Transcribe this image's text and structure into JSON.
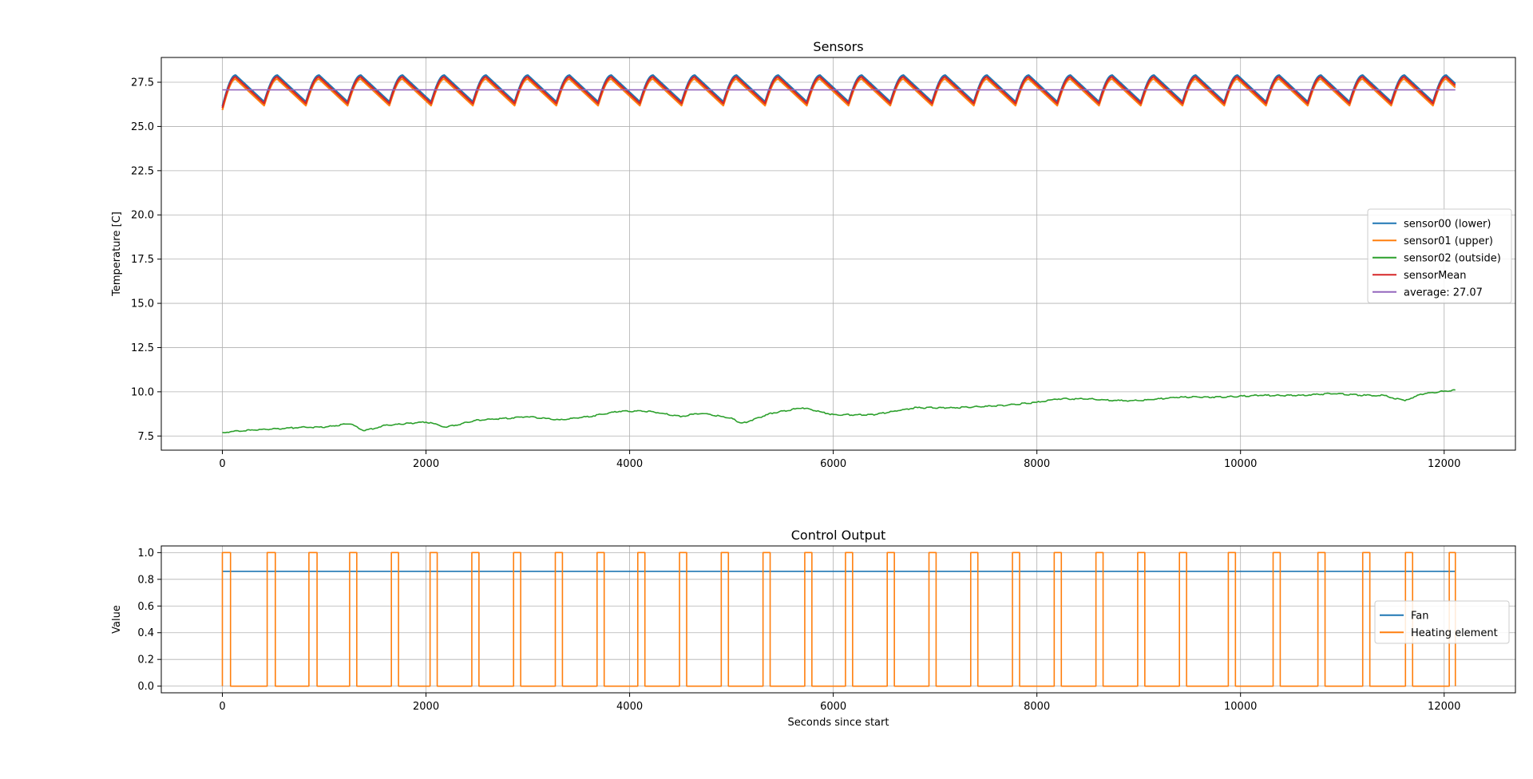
{
  "chart_data": [
    {
      "type": "line",
      "title": "Sensors",
      "xlabel": "",
      "ylabel": "Temperature [C]",
      "xlim": [
        -600,
        12700
      ],
      "ylim": [
        6.7,
        28.9
      ],
      "xticks": [
        0,
        2000,
        4000,
        6000,
        8000,
        10000,
        12000
      ],
      "xtick_labels": [
        "0",
        "2000",
        "4000",
        "6000",
        "8000",
        "10000",
        "12000"
      ],
      "yticks": [
        7.5,
        10.0,
        12.5,
        15.0,
        17.5,
        20.0,
        22.5,
        25.0,
        27.5
      ],
      "ytick_labels": [
        "7.5",
        "10.0",
        "12.5",
        "15.0",
        "17.5",
        "20.0",
        "22.5",
        "25.0",
        "27.5"
      ],
      "grid": true,
      "legend_position": "center-right",
      "cycle": {
        "start": 0,
        "period_seconds": 410,
        "end": 12110,
        "rise_seconds": 130,
        "low": 26.3,
        "high": 27.8,
        "initial_value": 26.05
      },
      "series": [
        {
          "name": "sensor00 (lower)",
          "color": "#1f77b4",
          "kind": "cycle",
          "offset": 0.1
        },
        {
          "name": "sensor01 (upper)",
          "color": "#ff7f0e",
          "kind": "cycle",
          "offset": -0.12
        },
        {
          "name": "sensor02 (outside)",
          "color": "#2ca02c",
          "kind": "points",
          "x": [
            0,
            200,
            500,
            800,
            1000,
            1250,
            1400,
            1600,
            2000,
            2200,
            2500,
            2800,
            3000,
            3300,
            3600,
            3900,
            4200,
            4500,
            4700,
            5000,
            5100,
            5400,
            5700,
            6000,
            6400,
            6800,
            7200,
            7600,
            8000,
            8200,
            8500,
            8800,
            9000,
            9400,
            9800,
            10200,
            10600,
            10900,
            11200,
            11400,
            11600,
            11800,
            12110
          ],
          "y": [
            7.7,
            7.8,
            7.9,
            8.0,
            8.0,
            8.2,
            7.8,
            8.1,
            8.3,
            8.0,
            8.4,
            8.5,
            8.6,
            8.4,
            8.6,
            8.9,
            8.9,
            8.6,
            8.8,
            8.5,
            8.2,
            8.8,
            9.1,
            8.7,
            8.7,
            9.1,
            9.1,
            9.2,
            9.4,
            9.6,
            9.6,
            9.5,
            9.5,
            9.7,
            9.7,
            9.8,
            9.8,
            9.9,
            9.8,
            9.8,
            9.5,
            9.9,
            10.1
          ]
        },
        {
          "name": "sensorMean",
          "color": "#d62728",
          "kind": "cycle",
          "offset": 0.0
        },
        {
          "name": "average: 27.07",
          "color": "#9467bd",
          "kind": "constant",
          "value": 27.07,
          "x_range": [
            0,
            12110
          ]
        }
      ]
    },
    {
      "type": "line",
      "title": "Control Output",
      "xlabel": "Seconds since start",
      "ylabel": "Value",
      "xlim": [
        -600,
        12700
      ],
      "ylim": [
        -0.05,
        1.05
      ],
      "xticks": [
        0,
        2000,
        4000,
        6000,
        8000,
        10000,
        12000
      ],
      "xtick_labels": [
        "0",
        "2000",
        "4000",
        "6000",
        "8000",
        "10000",
        "12000"
      ],
      "yticks": [
        0.0,
        0.2,
        0.4,
        0.6,
        0.8,
        1.0
      ],
      "ytick_labels": [
        "0.0",
        "0.2",
        "0.4",
        "0.6",
        "0.8",
        "1.0"
      ],
      "grid": true,
      "legend_position": "center-right",
      "series": [
        {
          "name": "Fan",
          "color": "#1f77b4",
          "kind": "constant",
          "value": 0.86,
          "x_range": [
            0,
            12110
          ]
        },
        {
          "name": "Heating element",
          "color": "#ff7f0e",
          "kind": "pulses",
          "on_value": 1.0,
          "off_value": 0.0,
          "x_range": [
            0,
            12110
          ],
          "pulses": [
            [
              0,
              80
            ],
            [
              440,
              520
            ],
            [
              850,
              930
            ],
            [
              1250,
              1320
            ],
            [
              1660,
              1730
            ],
            [
              2040,
              2110
            ],
            [
              2450,
              2520
            ],
            [
              2860,
              2930
            ],
            [
              3270,
              3340
            ],
            [
              3680,
              3750
            ],
            [
              4080,
              4150
            ],
            [
              4490,
              4560
            ],
            [
              4900,
              4970
            ],
            [
              5310,
              5380
            ],
            [
              5720,
              5790
            ],
            [
              6120,
              6190
            ],
            [
              6530,
              6600
            ],
            [
              6940,
              7010
            ],
            [
              7350,
              7420
            ],
            [
              7760,
              7830
            ],
            [
              8170,
              8240
            ],
            [
              8580,
              8650
            ],
            [
              8990,
              9060
            ],
            [
              9400,
              9470
            ],
            [
              9880,
              9950
            ],
            [
              10320,
              10390
            ],
            [
              10760,
              10830
            ],
            [
              11200,
              11270
            ],
            [
              11620,
              11690
            ],
            [
              12050,
              12110
            ]
          ]
        }
      ]
    }
  ]
}
